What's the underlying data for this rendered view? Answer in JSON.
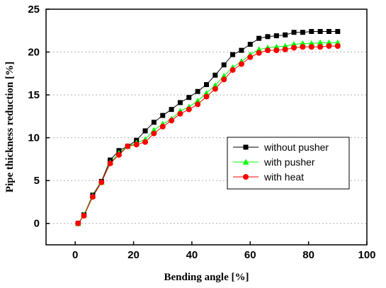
{
  "chart_data": {
    "type": "line",
    "title": "",
    "xlabel": "Bending angle [%]",
    "ylabel": "Pipe thickness reduction [%]",
    "xlim": [
      -10,
      100
    ],
    "ylim": [
      -2.5,
      25
    ],
    "xticks": [
      0,
      20,
      40,
      60,
      80,
      100
    ],
    "yticks": [
      0,
      5,
      10,
      15,
      20,
      25
    ],
    "grid": true,
    "legend_position": "right",
    "series": [
      {
        "name": "without pusher",
        "color": "#000000",
        "marker": "square",
        "x": [
          1,
          3,
          6,
          9,
          12,
          15,
          18,
          21,
          24,
          27,
          30,
          33,
          36,
          39,
          42,
          45,
          48,
          51,
          54,
          57,
          60,
          63,
          66,
          69,
          72,
          75,
          78,
          81,
          84,
          87,
          90
        ],
        "y": [
          0,
          1.0,
          3.3,
          4.9,
          7.4,
          8.5,
          9.0,
          9.7,
          10.8,
          11.8,
          12.6,
          13.3,
          14.1,
          14.7,
          15.4,
          16.2,
          17.3,
          18.5,
          19.7,
          20.2,
          20.9,
          21.6,
          21.8,
          21.9,
          22.0,
          22.3,
          22.3,
          22.4,
          22.4,
          22.4,
          22.4
        ]
      },
      {
        "name": "with pusher",
        "color": "#00ff00",
        "marker": "triangle",
        "x": [
          1,
          3,
          6,
          9,
          12,
          15,
          18,
          21,
          24,
          27,
          30,
          33,
          36,
          39,
          42,
          45,
          48,
          51,
          54,
          57,
          60,
          63,
          66,
          69,
          72,
          75,
          78,
          81,
          84,
          87,
          90
        ],
        "y": [
          0,
          1.0,
          3.2,
          4.8,
          7.1,
          8.2,
          9.0,
          9.4,
          9.8,
          10.9,
          11.6,
          12.2,
          13.1,
          13.6,
          14.3,
          15.2,
          16.1,
          17.2,
          18.2,
          18.9,
          19.7,
          20.3,
          20.5,
          20.6,
          20.7,
          20.9,
          21.0,
          21.0,
          21.1,
          21.1,
          21.1
        ]
      },
      {
        "name": "with heat",
        "color": "#ff0000",
        "marker": "circle",
        "x": [
          1,
          3,
          6,
          9,
          12,
          15,
          18,
          21,
          24,
          27,
          30,
          33,
          36,
          39,
          42,
          45,
          48,
          51,
          54,
          57,
          60,
          63,
          66,
          69,
          72,
          75,
          78,
          81,
          84,
          87,
          90
        ],
        "y": [
          0,
          0.9,
          3.1,
          4.8,
          7.0,
          8.0,
          9.0,
          9.2,
          9.5,
          10.5,
          11.3,
          12.0,
          12.8,
          13.3,
          13.9,
          14.8,
          15.7,
          16.8,
          17.9,
          18.6,
          19.4,
          19.9,
          20.2,
          20.2,
          20.3,
          20.5,
          20.6,
          20.6,
          20.6,
          20.7,
          20.7
        ]
      }
    ]
  }
}
